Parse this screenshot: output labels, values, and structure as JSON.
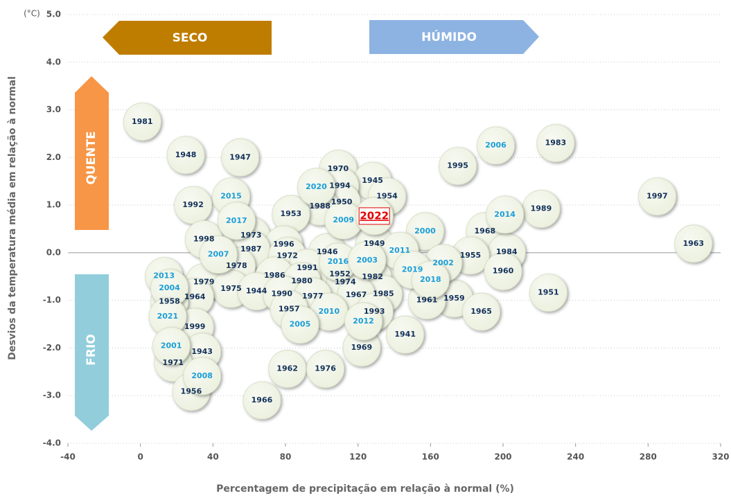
{
  "chart_data": {
    "type": "scatter",
    "unit_label": "(°C)",
    "x_label": "Percentagem de precipitação em relação à normal (%)",
    "y_label": "Desvios da temperatura média em relação à normal",
    "annotations": {
      "dry": "SECO",
      "wet": "HÚMIDO",
      "hot": "QUENTE",
      "cold": "FRIO"
    },
    "xlim": [
      -40,
      320
    ],
    "xticks": [
      -40,
      0,
      40,
      80,
      120,
      160,
      200,
      240,
      280,
      320
    ],
    "ylim": [
      -4,
      5
    ],
    "yticks": [
      {
        "value": 5,
        "label": "5.0"
      },
      {
        "value": 4,
        "label": "4.0"
      },
      {
        "value": 3,
        "label": "3.0"
      },
      {
        "value": 2,
        "label": "2.0"
      },
      {
        "value": 1,
        "label": "1.0"
      },
      {
        "value": 0,
        "label": "0.0"
      },
      {
        "value": -1,
        "label": "-1.0"
      },
      {
        "value": -2,
        "label": "-2.0"
      },
      {
        "value": -3,
        "label": "-3.0"
      },
      {
        "value": -4,
        "label": "-4.0"
      }
    ],
    "grid": true,
    "bubble_color": "#ebf0de",
    "series": [
      {
        "color": "#12305a",
        "labels": [
          "1981",
          "1948",
          "1947",
          "1970",
          "1983",
          "1995",
          "1945",
          "1994",
          "1954",
          "1950",
          "1988",
          "1997",
          "1989",
          "1992",
          "1953",
          "1968",
          "1973",
          "1998",
          "1963",
          "1996",
          "1949",
          "1987",
          "1946",
          "1984",
          "1955",
          "1972",
          "1978",
          "1991",
          "1960",
          "1952",
          "1986",
          "1982",
          "1980",
          "1974",
          "1979",
          "1975",
          "1944",
          "1990",
          "1951",
          "1985",
          "1967",
          "1977",
          "1964",
          "1959",
          "1961",
          "1958",
          "1965",
          "1957",
          "1993",
          "1999",
          "1941",
          "1969",
          "1943",
          "1971",
          "1962",
          "1976",
          "1956",
          "1966"
        ],
        "x": [
          1,
          25,
          55,
          109,
          229,
          175,
          128,
          110,
          136,
          111,
          99,
          285,
          221,
          29,
          83,
          190,
          61,
          35,
          305,
          79,
          129,
          61,
          103,
          202,
          182,
          81,
          53,
          92,
          200,
          110,
          74,
          128,
          89,
          113,
          35,
          50,
          64,
          78,
          225,
          134,
          119,
          95,
          30,
          173,
          158,
          16,
          188,
          82,
          129,
          30,
          146,
          122,
          34,
          18,
          81,
          102,
          28,
          67
        ],
        "values": [
          2.75,
          2.05,
          2.0,
          1.76,
          2.3,
          1.82,
          1.51,
          1.4,
          1.18,
          1.06,
          0.97,
          1.18,
          0.92,
          1.0,
          0.81,
          0.45,
          0.36,
          0.28,
          0.19,
          0.17,
          0.19,
          0.07,
          0.01,
          0.01,
          -0.06,
          -0.07,
          -0.28,
          -0.32,
          -0.39,
          -0.45,
          -0.48,
          -0.51,
          -0.6,
          -0.62,
          -0.62,
          -0.76,
          -0.81,
          -0.87,
          -0.84,
          -0.87,
          -0.89,
          -0.92,
          -0.93,
          -0.96,
          -1.0,
          -1.03,
          -1.24,
          -1.19,
          -1.24,
          -1.56,
          -1.72,
          -1.99,
          -2.08,
          -2.31,
          -2.44,
          -2.44,
          -2.92,
          -3.1
        ]
      },
      {
        "color": "#1a9ed8",
        "labels": [
          "2006",
          "2020",
          "2015",
          "2009",
          "2017",
          "2000",
          "2014",
          "2011",
          "2007",
          "2016",
          "2003",
          "2002",
          "2019",
          "2013",
          "2018",
          "2004",
          "2010",
          "2021",
          "2012",
          "2005",
          "2001",
          "2008"
        ],
        "x": [
          196,
          97,
          50,
          112,
          53,
          157,
          201,
          143,
          43,
          109,
          125,
          167,
          150,
          13,
          160,
          16,
          104,
          15,
          123,
          88,
          17,
          34
        ],
        "values": [
          2.25,
          1.38,
          1.18,
          0.68,
          0.67,
          0.45,
          0.8,
          0.04,
          -0.04,
          -0.19,
          -0.16,
          -0.22,
          -0.36,
          -0.49,
          -0.57,
          -0.74,
          -1.24,
          -1.34,
          -1.44,
          -1.51,
          -1.96,
          -2.59
        ]
      },
      {
        "color": "#e00000",
        "highlight": true,
        "labels": [
          "2022"
        ],
        "x": [
          129
        ],
        "values": [
          0.77
        ]
      }
    ]
  }
}
